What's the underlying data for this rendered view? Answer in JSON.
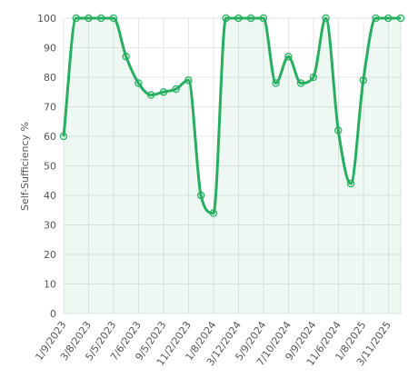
{
  "chart_data": {
    "type": "area",
    "title": "",
    "xlabel": "",
    "ylabel": "Self-Sufficiency %",
    "ylim": [
      0,
      100
    ],
    "yticks": [
      0,
      10,
      20,
      30,
      40,
      50,
      60,
      70,
      80,
      90,
      100
    ],
    "grid": true,
    "legend": "none",
    "x_tick_labels": [
      "1/9/2023",
      "3/8/2023",
      "5/5/2023",
      "7/6/2023",
      "9/5/2023",
      "11/2/2023",
      "1/8/2024",
      "3/12/2024",
      "5/9/2024",
      "7/10/2024",
      "9/9/2024",
      "11/6/2024",
      "1/8/2025",
      "3/11/2025"
    ],
    "series": [
      {
        "values": [
          60,
          100,
          100,
          100,
          100,
          87,
          78,
          74,
          75,
          76,
          79,
          40,
          34,
          100,
          100,
          100,
          100,
          78,
          87,
          78,
          80,
          100,
          62,
          44,
          79,
          100,
          100,
          100
        ]
      }
    ],
    "colors": {
      "line": "#27ae60",
      "area": "#27ae60"
    }
  }
}
